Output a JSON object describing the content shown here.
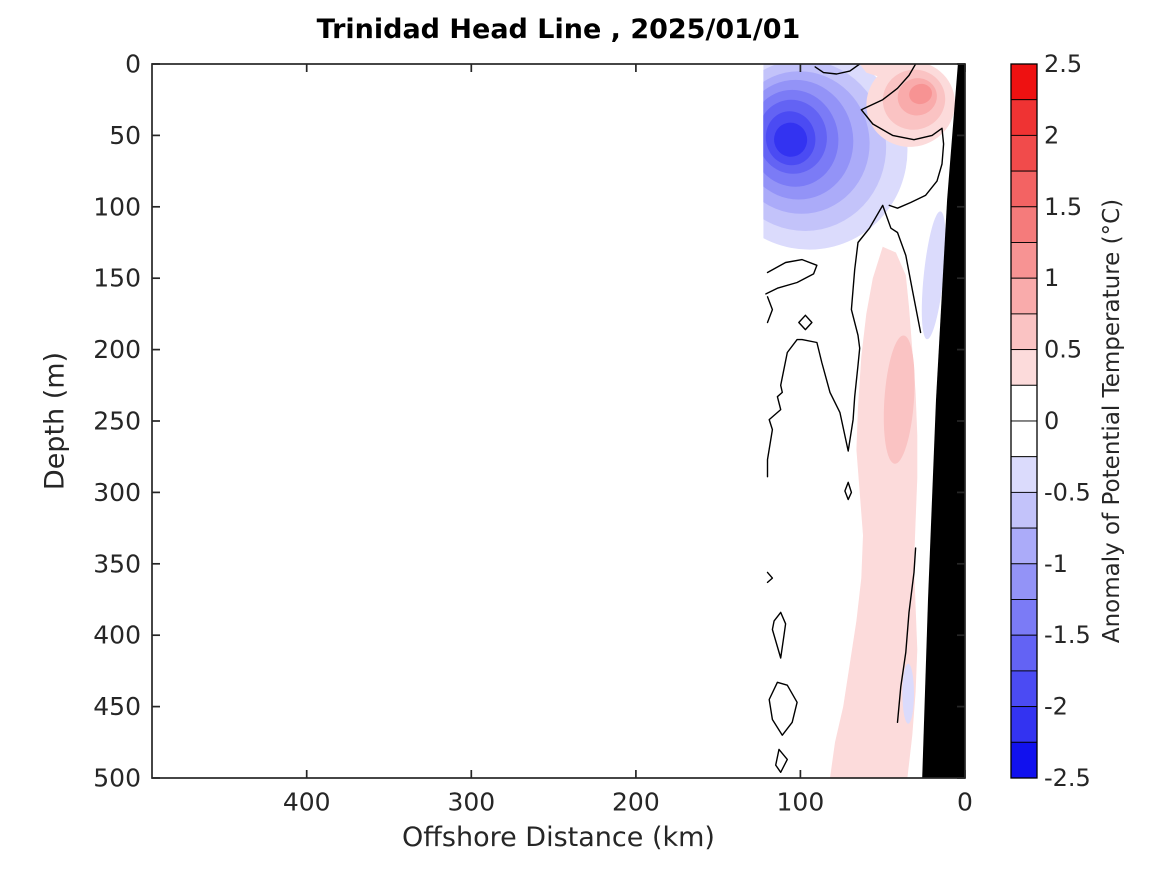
{
  "title": "Trinidad Head Line , 2025/01/01",
  "axis_labels": {
    "x": "Offshore Distance (km)",
    "y": "Depth (m)"
  },
  "colorbar": {
    "label": "Anomaly of Potential Temperature (°C)",
    "tick_labels": [
      "2.5",
      "2",
      "1.5",
      "1",
      "0.5",
      "0",
      "-0.5",
      "-1",
      "-1.5",
      "-2",
      "-2.5"
    ]
  },
  "chart_data": {
    "type": "filled_contour_section",
    "title": "Trinidad Head Line , 2025/01/01",
    "xlabel": "Offshore Distance (km)",
    "ylabel": "Depth (m)",
    "colorbar_label": "Anomaly of Potential Temperature (°C)",
    "x_ticks_km": [
      400,
      300,
      200,
      100,
      0
    ],
    "x_range_km": [
      0,
      494
    ],
    "x_axis_reversed": true,
    "y_ticks_m": [
      0,
      50,
      100,
      150,
      200,
      250,
      300,
      350,
      400,
      450,
      500
    ],
    "y_range_m": [
      0,
      500
    ],
    "colorbar_range_c": [
      -2.5,
      2.5
    ],
    "colorbar_tick_step_c": 0.5,
    "colorbar_n_segments": 20,
    "colorbar_segment_colors_top_to_bottom": [
      "#ee1111",
      "#ef3333",
      "#f14b4b",
      "#f36363",
      "#f57b7b",
      "#f79393",
      "#f9abab",
      "#fac3c3",
      "#fcdbdb",
      "#ffffff",
      "#ffffff",
      "#dbdbfc",
      "#c3c3fa",
      "#ababf9",
      "#9393f7",
      "#7b7bf6",
      "#6363f4",
      "#4b4bf3",
      "#3333f1",
      "#1111ee"
    ],
    "data_offshore_extent_km": 122.5,
    "contour_level_c": 0,
    "notable_features": [
      {
        "name": "cold_anomaly_core",
        "description": "Strong negative anomaly lens offshore near surface",
        "min_anomaly_c": -2.2,
        "offshore_km": 106,
        "depth_m": 53,
        "offshore_extent_km": [
          20,
          122
        ],
        "depth_extent_m": [
          0,
          140
        ]
      },
      {
        "name": "warm_surface_patch",
        "description": "Positive anomaly at surface near coast",
        "max_anomaly_c": 1.2,
        "offshore_km": 28,
        "depth_m": 22
      },
      {
        "name": "warm_deep_band",
        "description": "Weak positive anomaly band along the slope",
        "max_anomaly_c": 0.7,
        "offshore_km_range": [
          29,
          82
        ],
        "depth_m_range": [
          130,
          500
        ]
      },
      {
        "name": "bathymetry_mask",
        "description": "Black seafloor/coast wedge widening from ~4 km offshore at surface to ~26 km at 500 m"
      },
      {
        "name": "no_data_region",
        "description": "Section blank (white) beyond ~122 km offshore"
      }
    ],
    "fills": [
      {
        "kind": "ellipse",
        "name": "cold-ring-1",
        "color": "#dbdbfc",
        "c": [
          95,
          60
        ],
        "r": [
          60,
          70
        ],
        "rot": -12
      },
      {
        "kind": "ellipse",
        "name": "cold-ring-2",
        "color": "#c3c3fa",
        "c": [
          98,
          57
        ],
        "r": [
          50,
          60
        ],
        "rot": -12
      },
      {
        "kind": "ellipse",
        "name": "cold-ring-3",
        "color": "#ababf9",
        "c": [
          100,
          55
        ],
        "r": [
          42,
          50
        ],
        "rot": -12
      },
      {
        "kind": "ellipse",
        "name": "cold-ring-4",
        "color": "#9393f7",
        "c": [
          102,
          53
        ],
        "r": [
          34,
          42
        ],
        "rot": -12
      },
      {
        "kind": "ellipse",
        "name": "cold-ring-5",
        "color": "#7b7bf6",
        "c": [
          104,
          52
        ],
        "r": [
          27,
          34
        ],
        "rot": -12
      },
      {
        "kind": "ellipse",
        "name": "cold-ring-6",
        "color": "#6363f4",
        "c": [
          105,
          51
        ],
        "r": [
          21,
          26
        ],
        "rot": -12
      },
      {
        "kind": "ellipse",
        "name": "cold-ring-7",
        "color": "#4b4bf3",
        "c": [
          106,
          52
        ],
        "r": [
          15,
          19
        ],
        "rot": -12
      },
      {
        "kind": "ellipse",
        "name": "cold-ring-8",
        "color": "#3333f1",
        "c": [
          106,
          53
        ],
        "r": [
          10,
          12
        ],
        "rot": -12
      },
      {
        "kind": "ellipse",
        "name": "surface-lavender-patch",
        "color": "#dbdbfc",
        "c": [
          44,
          11
        ],
        "r": [
          9,
          7
        ],
        "rot": 0
      },
      {
        "kind": "polygon",
        "name": "surface-warm-strip",
        "color": "#fcdbdb",
        "pts": [
          [
            64,
            0
          ],
          [
            60,
            6
          ],
          [
            52,
            9
          ],
          [
            40,
            8
          ],
          [
            32,
            4
          ],
          [
            29,
            0
          ]
        ]
      },
      {
        "kind": "ellipse",
        "name": "warm-patch-1",
        "color": "#fcdbdb",
        "c": [
          33,
          28
        ],
        "r": [
          27,
          30
        ],
        "rot": -15
      },
      {
        "kind": "ellipse",
        "name": "warm-patch-2",
        "color": "#fac3c3",
        "c": [
          31,
          25
        ],
        "r": [
          19,
          21
        ],
        "rot": -15
      },
      {
        "kind": "ellipse",
        "name": "warm-patch-3",
        "color": "#f9abab",
        "c": [
          29,
          23
        ],
        "r": [
          12,
          13
        ],
        "rot": -15
      },
      {
        "kind": "ellipse",
        "name": "warm-patch-4",
        "color": "#f79393",
        "c": [
          27,
          21
        ],
        "r": [
          7,
          7
        ],
        "rot": -15
      },
      {
        "kind": "polygon",
        "name": "warm-deep-band",
        "color": "#fcdbdb",
        "pts": [
          [
            50,
            128
          ],
          [
            56,
            150
          ],
          [
            60,
            175
          ],
          [
            63,
            205
          ],
          [
            65,
            240
          ],
          [
            66,
            270
          ],
          [
            64,
            300
          ],
          [
            62,
            330
          ],
          [
            63,
            360
          ],
          [
            66,
            390
          ],
          [
            70,
            420
          ],
          [
            74,
            450
          ],
          [
            79,
            475
          ],
          [
            82,
            500
          ],
          [
            35,
            500
          ],
          [
            32,
            470
          ],
          [
            30,
            440
          ],
          [
            29,
            410
          ],
          [
            30,
            380
          ],
          [
            31,
            350
          ],
          [
            30,
            320
          ],
          [
            29,
            290
          ],
          [
            29,
            260
          ],
          [
            30,
            230
          ],
          [
            32,
            200
          ],
          [
            34,
            170
          ],
          [
            36,
            148
          ],
          [
            42,
            132
          ]
        ]
      },
      {
        "kind": "ellipse",
        "name": "warm-band-core",
        "color": "#fac3c3",
        "c": [
          40,
          235
        ],
        "r": [
          9,
          45
        ],
        "rot": 4
      },
      {
        "kind": "ellipse",
        "name": "coastal-lavender-upper",
        "color": "#dbdbfc",
        "c": [
          19,
          148
        ],
        "r": [
          6,
          45
        ],
        "rot": 6
      },
      {
        "kind": "ellipse",
        "name": "coastal-lavender-lower",
        "color": "#dbdbfc",
        "c": [
          34.5,
          441
        ],
        "r": [
          3.5,
          21
        ],
        "rot": 0
      }
    ],
    "contour_lines_km_m": [
      [
        [
          91,
          2
        ],
        [
          86,
          6
        ],
        [
          78,
          7
        ],
        [
          70,
          5
        ],
        [
          64,
          0
        ]
      ],
      [
        [
          30,
          0
        ],
        [
          34,
          8
        ],
        [
          41,
          17
        ],
        [
          50,
          25
        ],
        [
          63,
          32
        ],
        [
          56,
          42
        ],
        [
          44,
          50
        ],
        [
          31,
          53
        ],
        [
          20,
          50
        ],
        [
          14,
          45
        ],
        [
          13,
          56
        ],
        [
          14,
          70
        ],
        [
          17,
          82
        ],
        [
          24,
          92
        ],
        [
          33,
          97
        ],
        [
          41,
          101
        ],
        [
          46,
          99
        ]
      ],
      [
        [
          120,
          146
        ],
        [
          109,
          139
        ],
        [
          99,
          137
        ],
        [
          90,
          141
        ],
        [
          92,
          147
        ],
        [
          102,
          153
        ],
        [
          114,
          157
        ],
        [
          121,
          161
        ]
      ],
      [
        [
          120,
          163
        ],
        [
          117,
          172
        ],
        [
          120,
          181
        ]
      ],
      [
        [
          97,
          176
        ],
        [
          93,
          181
        ],
        [
          97,
          186
        ],
        [
          101,
          181
        ],
        [
          97,
          176
        ]
      ],
      [
        [
          27,
          188
        ],
        [
          32,
          158
        ],
        [
          36,
          134
        ],
        [
          41,
          118
        ],
        [
          45,
          115
        ],
        [
          50,
          99
        ],
        [
          58,
          115
        ],
        [
          65,
          125
        ],
        [
          67,
          144
        ],
        [
          69,
          172
        ],
        [
          65,
          190
        ],
        [
          64,
          199
        ],
        [
          65,
          211
        ],
        [
          67,
          233
        ],
        [
          68,
          249
        ],
        [
          71,
          271
        ],
        [
          76,
          244
        ],
        [
          82,
          230
        ],
        [
          87,
          209
        ],
        [
          90,
          195
        ],
        [
          99,
          193
        ],
        [
          102,
          193
        ],
        [
          108,
          202
        ],
        [
          112,
          225
        ],
        [
          111,
          230
        ],
        [
          114,
          233
        ],
        [
          112,
          242
        ],
        [
          119,
          249
        ],
        [
          117,
          256
        ],
        [
          120,
          277
        ],
        [
          120,
          289
        ]
      ],
      [
        [
          30,
          339
        ],
        [
          31,
          356
        ],
        [
          34,
          384
        ],
        [
          36,
          412
        ],
        [
          39,
          436
        ],
        [
          41,
          461
        ]
      ],
      [
        [
          112,
          384
        ],
        [
          116,
          390
        ],
        [
          117,
          396
        ],
        [
          112,
          416
        ],
        [
          110,
          400
        ],
        [
          109,
          392
        ],
        [
          112,
          384
        ]
      ],
      [
        [
          114,
          433
        ],
        [
          119,
          445
        ],
        [
          117,
          459
        ],
        [
          111,
          470
        ],
        [
          105,
          461
        ],
        [
          102,
          447
        ],
        [
          108,
          435
        ],
        [
          114,
          433
        ]
      ],
      [
        [
          113,
          480
        ],
        [
          115,
          491
        ],
        [
          112,
          496
        ],
        [
          108,
          487
        ],
        [
          113,
          480
        ]
      ],
      [
        [
          71,
          293
        ],
        [
          69,
          300
        ],
        [
          71,
          305
        ],
        [
          73,
          299
        ],
        [
          71,
          293
        ]
      ],
      [
        [
          120,
          356
        ],
        [
          117,
          360
        ],
        [
          120,
          363
        ]
      ]
    ],
    "bathymetry_polygon_km_m": [
      [
        4.3,
        0
      ],
      [
        0,
        0
      ],
      [
        0,
        500
      ],
      [
        26,
        500
      ],
      [
        22.5,
        375
      ],
      [
        17.6,
        235
      ],
      [
        10.9,
        95
      ]
    ]
  }
}
